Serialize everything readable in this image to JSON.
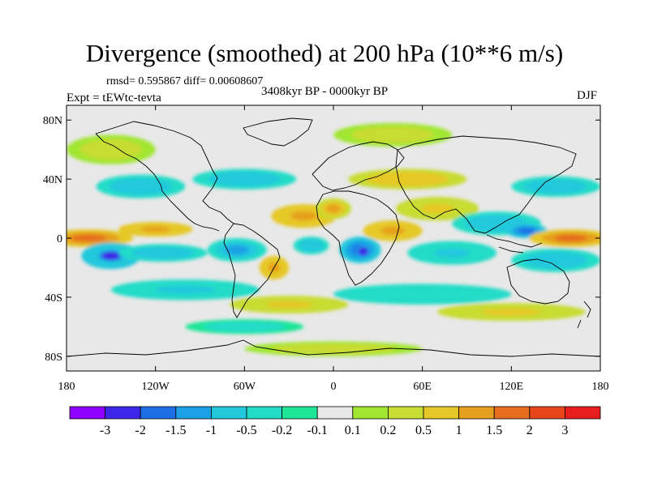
{
  "title": "Divergence (smoothed) at 200 hPa (10**6 m/s)",
  "stats": "rmsd= 0.595867 diff= 0.00608607",
  "period": "3408kyr BP - 0000kyr BP",
  "experiment": "Expt = tEWtc-tevta",
  "season": "DJF",
  "map": {
    "projection": "cylindrical equidistant",
    "lon_range": [
      -180,
      180
    ],
    "lat_range": [
      -90,
      90
    ],
    "background_color": "#e8e8e8",
    "coastline_color": "#000000",
    "y_ticks": [
      {
        "lat": 80,
        "label": "80N"
      },
      {
        "lat": 40,
        "label": "40N"
      },
      {
        "lat": 0,
        "label": "0"
      },
      {
        "lat": -40,
        "label": "40S"
      },
      {
        "lat": -80,
        "label": "80S"
      }
    ],
    "x_ticks": [
      {
        "lon": -180,
        "label": "180"
      },
      {
        "lon": -120,
        "label": "120W"
      },
      {
        "lon": -60,
        "label": "60W"
      },
      {
        "lon": 0,
        "label": "0"
      },
      {
        "lon": 60,
        "label": "60E"
      },
      {
        "lon": 120,
        "label": "120E"
      },
      {
        "lon": 180,
        "label": "180"
      }
    ]
  },
  "colorbar": {
    "colors": [
      "#8f00ff",
      "#3c28e6",
      "#1e6ee6",
      "#1ea0e6",
      "#22c8dc",
      "#22dcc8",
      "#1ee696",
      "#e8e8e8",
      "#a0e632",
      "#c8dc32",
      "#e6c828",
      "#e6a01e",
      "#e66e1e",
      "#e64619",
      "#e61e1e"
    ],
    "labels": [
      "-3",
      "-2",
      "-1.5",
      "-1",
      "-0.5",
      "-0.2",
      "-0.1",
      "0.1",
      "0.2",
      "0.5",
      "1",
      "1.5",
      "2",
      "3"
    ]
  },
  "chart_data": {
    "type": "heatmap",
    "title": "Divergence (smoothed) at 200 hPa (10**6 m/s)",
    "xlabel": "",
    "ylabel": "",
    "levels": [
      -3,
      -2,
      -1.5,
      -1,
      -0.5,
      -0.2,
      -0.1,
      0.1,
      0.2,
      0.5,
      1,
      1.5,
      2,
      3
    ],
    "xlim": [
      -180,
      180
    ],
    "ylim": [
      -90,
      90
    ],
    "blobs": [
      {
        "lon": -165,
        "lat": 0,
        "rlon": 30,
        "rlat": 6,
        "value": 1.5
      },
      {
        "lon": -120,
        "lat": 6,
        "rlon": 25,
        "rlat": 5,
        "value": 1.2
      },
      {
        "lon": -150,
        "lat": -12,
        "rlon": 20,
        "rlat": 9,
        "value": -1.2
      },
      {
        "lon": -150,
        "lat": -12,
        "rlon": 9,
        "rlat": 4,
        "value": -3
      },
      {
        "lon": -115,
        "lat": -10,
        "rlon": 30,
        "rlat": 6,
        "value": -1.0
      },
      {
        "lon": -65,
        "lat": -8,
        "rlon": 20,
        "rlat": 8,
        "value": -1.1
      },
      {
        "lon": -40,
        "lat": -20,
        "rlon": 10,
        "rlat": 8,
        "value": 1.2
      },
      {
        "lon": -15,
        "lat": -5,
        "rlon": 12,
        "rlat": 6,
        "value": -1.0
      },
      {
        "lon": 18,
        "lat": -8,
        "rlon": 14,
        "rlat": 9,
        "value": -1.8
      },
      {
        "lon": 20,
        "lat": -9,
        "rlon": 5,
        "rlat": 4,
        "value": -3
      },
      {
        "lon": -20,
        "lat": 15,
        "rlon": 22,
        "rlat": 8,
        "value": 1.3
      },
      {
        "lon": 0,
        "lat": 20,
        "rlon": 12,
        "rlat": 7,
        "value": 1.0
      },
      {
        "lon": 40,
        "lat": 5,
        "rlon": 20,
        "rlat": 7,
        "value": 1.2
      },
      {
        "lon": 70,
        "lat": 20,
        "rlon": 28,
        "rlat": 8,
        "value": 0.6
      },
      {
        "lon": 80,
        "lat": -10,
        "rlon": 30,
        "rlat": 8,
        "value": -0.6
      },
      {
        "lon": 110,
        "lat": 10,
        "rlon": 30,
        "rlat": 8,
        "value": -1.0
      },
      {
        "lon": 130,
        "lat": 5,
        "rlon": 14,
        "rlat": 5,
        "value": -1.6
      },
      {
        "lon": 160,
        "lat": 0,
        "rlon": 28,
        "rlat": 6,
        "value": 1.8
      },
      {
        "lon": 150,
        "lat": -15,
        "rlon": 30,
        "rlat": 8,
        "value": -0.8
      },
      {
        "lon": -130,
        "lat": 35,
        "rlon": 30,
        "rlat": 8,
        "value": -1.0
      },
      {
        "lon": -60,
        "lat": 40,
        "rlon": 35,
        "rlat": 7,
        "value": -0.8
      },
      {
        "lon": 50,
        "lat": 40,
        "rlon": 40,
        "rlat": 7,
        "value": 0.8
      },
      {
        "lon": 150,
        "lat": 35,
        "rlon": 30,
        "rlat": 7,
        "value": -0.8
      },
      {
        "lon": -150,
        "lat": 60,
        "rlon": 30,
        "rlat": 10,
        "value": 0.4
      },
      {
        "lon": 40,
        "lat": 70,
        "rlon": 40,
        "rlat": 8,
        "value": 0.4
      },
      {
        "lon": -100,
        "lat": -35,
        "rlon": 50,
        "rlat": 7,
        "value": -0.6
      },
      {
        "lon": 60,
        "lat": -38,
        "rlon": 60,
        "rlat": 7,
        "value": -0.5
      },
      {
        "lon": -30,
        "lat": -45,
        "rlon": 40,
        "rlat": 6,
        "value": 0.6
      },
      {
        "lon": 120,
        "lat": -50,
        "rlon": 50,
        "rlat": 6,
        "value": 0.5
      },
      {
        "lon": -60,
        "lat": -60,
        "rlon": 40,
        "rlat": 5,
        "value": -0.3
      },
      {
        "lon": 0,
        "lat": -75,
        "rlon": 60,
        "rlat": 5,
        "value": 0.3
      }
    ]
  }
}
